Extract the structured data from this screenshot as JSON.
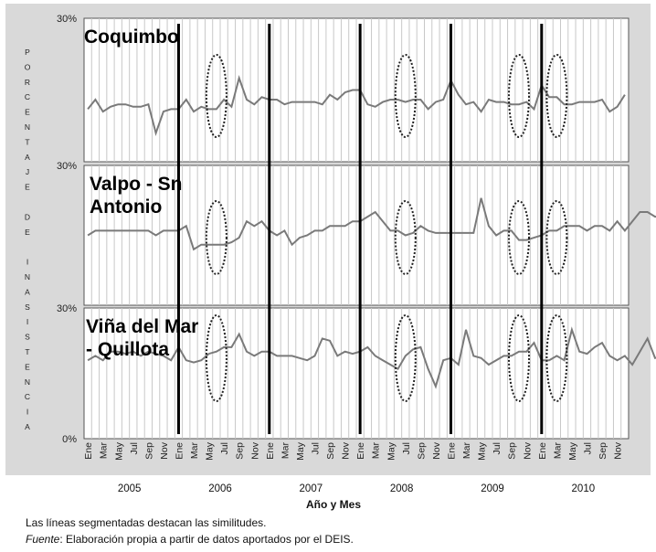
{
  "chart_data": {
    "type": "line",
    "ylabel_letters": [
      "P",
      "O",
      "R",
      "C",
      "E",
      "N",
      "T",
      "A",
      "J",
      "E",
      "",
      "D",
      "E",
      "",
      "I",
      "N",
      "A",
      "S",
      "I",
      "S",
      "T",
      "E",
      "N",
      "C",
      "I",
      "A"
    ],
    "y_ticks": {
      "top": "30%",
      "bottom": "0%"
    },
    "ylim": [
      0,
      30
    ],
    "xlabel": "Año y Mes",
    "x_tick_labels": [
      "Ene",
      "Mar",
      "May",
      "Jul",
      "Sep",
      "Nov",
      "Ene",
      "Mar",
      "May",
      "Jul",
      "Sep",
      "Nov",
      "Ene",
      "Mar",
      "May",
      "Jul",
      "Sep",
      "Nov",
      "Ene",
      "Mar",
      "May",
      "Jul",
      "Sep",
      "Nov",
      "Ene",
      "Mar",
      "May",
      "Jul",
      "Sep",
      "Nov",
      "Ene",
      "Mar",
      "May",
      "Jul",
      "Sep",
      "Nov"
    ],
    "years": [
      "2005",
      "2006",
      "2007",
      "2008",
      "2009",
      "2010"
    ],
    "year_boundaries": [
      12,
      24,
      36,
      48,
      60
    ],
    "highlight_months": [
      17,
      42,
      57,
      62
    ],
    "panels": [
      {
        "title": "Coquimbo",
        "values": [
          11,
          13,
          10.5,
          11.5,
          12,
          12,
          11.5,
          11.5,
          12,
          6,
          10.5,
          11,
          11,
          13,
          10.5,
          11.5,
          11,
          11,
          13,
          11.5,
          17.5,
          13,
          12,
          13.5,
          13,
          13,
          12,
          12.5,
          12.5,
          12.5,
          12.5,
          12,
          14,
          13,
          14.5,
          15,
          15,
          12,
          11.5,
          12.5,
          13,
          13,
          12.5,
          13,
          13,
          11,
          12.5,
          13,
          17,
          14,
          12,
          12.5,
          10.5,
          13,
          12.5,
          12.5,
          12,
          12,
          12.5,
          11,
          16,
          13.5,
          13.5,
          12,
          12,
          12.5,
          12.5,
          12.5,
          13,
          10.5,
          11.5,
          14
        ]
      },
      {
        "title": "Valpo - Sn Antonio",
        "values": [
          15,
          16,
          16,
          16,
          16,
          16,
          16,
          16,
          16,
          15,
          16,
          16,
          16,
          17,
          12,
          13,
          13,
          13,
          13,
          13.5,
          14.5,
          18,
          17,
          18,
          16,
          15,
          16,
          13,
          14.5,
          15,
          16,
          16,
          17,
          17,
          17,
          18,
          18,
          19,
          20,
          18,
          16,
          16,
          15,
          15.5,
          17,
          16,
          15.5,
          15.5,
          15.5,
          15.5,
          15.5,
          15.5,
          23,
          17,
          15,
          16,
          16,
          14,
          14,
          14.5,
          15,
          16,
          16,
          17,
          17,
          17,
          16,
          17,
          17,
          16,
          18,
          16,
          18,
          20,
          20,
          19,
          19,
          18,
          17,
          17,
          17,
          18,
          17,
          18
        ]
      },
      {
        "title": "Viña del Mar - Quillota",
        "values": [
          18,
          19,
          18,
          20,
          20,
          19.5,
          20,
          19,
          20,
          19.5,
          19,
          18,
          21,
          18,
          17.5,
          18,
          19.5,
          20,
          21,
          21,
          24,
          20,
          19,
          20,
          20,
          19,
          19,
          19,
          18.5,
          18,
          19,
          23,
          22.5,
          19,
          20,
          19.5,
          20,
          21,
          19,
          18,
          17,
          16,
          19,
          20.5,
          21,
          16,
          12,
          18,
          18.5,
          17,
          25,
          19,
          18.5,
          17,
          18,
          19,
          19,
          20,
          20,
          22,
          18,
          18,
          19,
          18,
          25,
          20,
          19.5,
          21,
          22,
          19,
          18,
          19,
          17,
          20,
          23,
          18.5,
          19,
          19,
          19.5,
          19,
          19,
          19,
          19,
          20,
          21,
          23
        ]
      }
    ]
  },
  "notes": {
    "line1": "Las líneas segmentadas destacan las similitudes.",
    "source_label": "Fuente",
    "source_text": ": Elaboración propia a partir de datos aportados por el DEIS."
  }
}
